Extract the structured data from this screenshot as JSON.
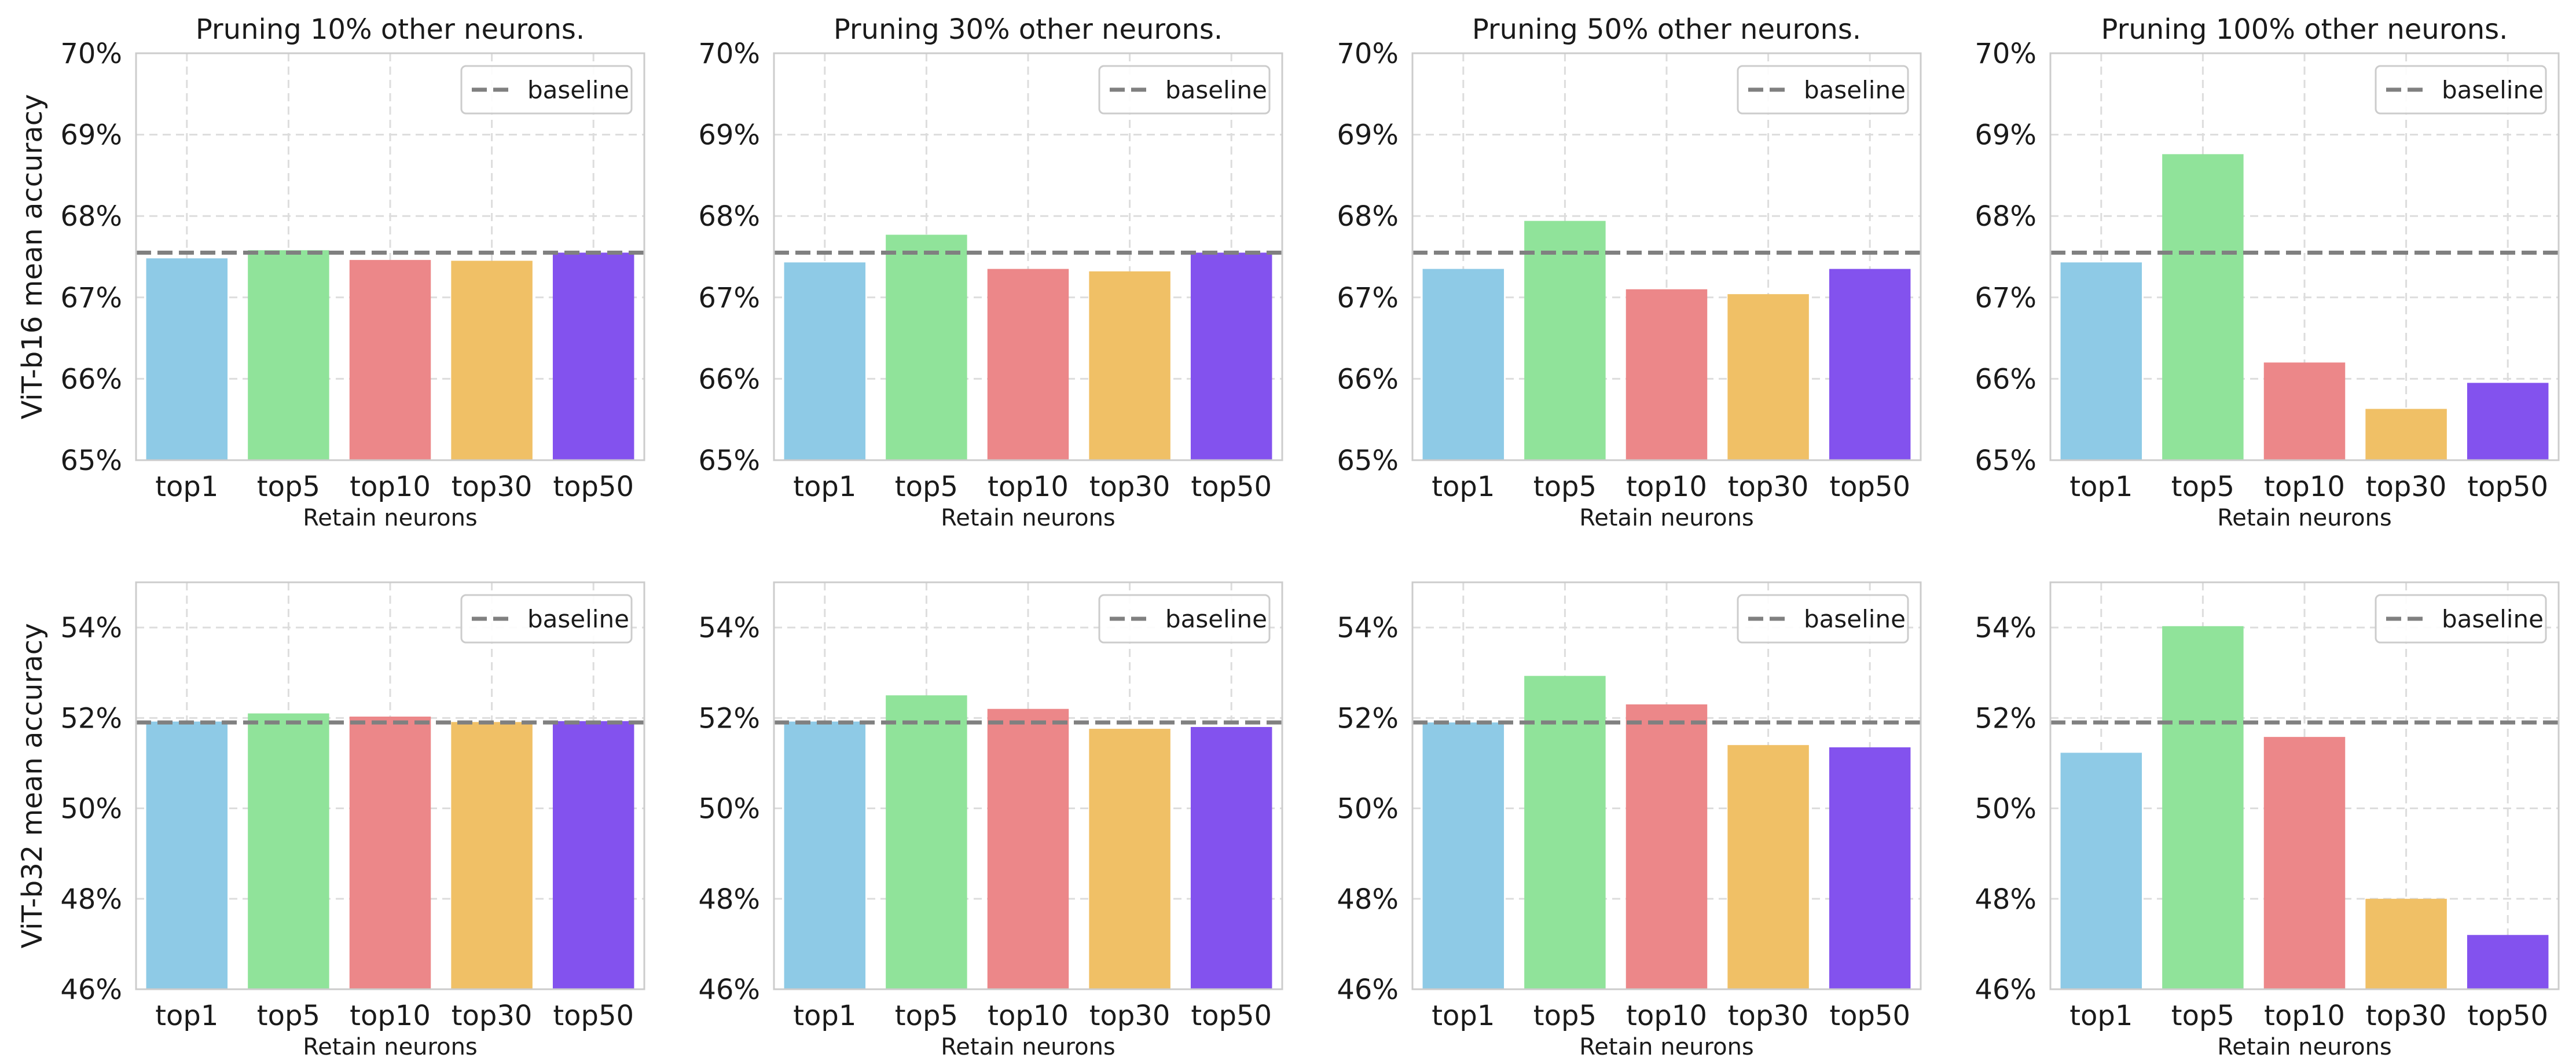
{
  "colors": {
    "bars": [
      "#8ecae6",
      "#90e39a",
      "#ec8789",
      "#f0c066",
      "#8352ee"
    ],
    "baseline": "#808080",
    "grid": "#dddddd",
    "frame": "#cccccc",
    "text": "#1a1a1a"
  },
  "chart_data": [
    {
      "type": "bar",
      "title": "Pruning 10% other neurons.",
      "xlabel": "Retain neurons",
      "ylabel": "ViT-b16 mean accuracy",
      "categories": [
        "top1",
        "top5",
        "top10",
        "top30",
        "top50"
      ],
      "values": [
        67.48,
        67.58,
        67.46,
        67.45,
        67.55
      ],
      "baseline": 67.55,
      "baseline_label": "baseline",
      "ylim": [
        65,
        70
      ],
      "yticks": [
        65,
        66,
        67,
        68,
        69,
        70
      ],
      "ytick_labels": [
        "65%",
        "66%",
        "67%",
        "68%",
        "69%",
        "70%"
      ],
      "grid": true,
      "legend": "top-right"
    },
    {
      "type": "bar",
      "title": "Pruning 30% other neurons.",
      "xlabel": "Retain neurons",
      "ylabel": "",
      "categories": [
        "top1",
        "top5",
        "top10",
        "top30",
        "top50"
      ],
      "values": [
        67.43,
        67.77,
        67.35,
        67.32,
        67.55
      ],
      "baseline": 67.55,
      "baseline_label": "baseline",
      "ylim": [
        65,
        70
      ],
      "yticks": [
        65,
        66,
        67,
        68,
        69,
        70
      ],
      "ytick_labels": [
        "65%",
        "66%",
        "67%",
        "68%",
        "69%",
        "70%"
      ],
      "grid": true,
      "legend": "top-right"
    },
    {
      "type": "bar",
      "title": "Pruning 50% other neurons.",
      "xlabel": "Retain neurons",
      "ylabel": "",
      "categories": [
        "top1",
        "top5",
        "top10",
        "top30",
        "top50"
      ],
      "values": [
        67.35,
        67.94,
        67.1,
        67.04,
        67.35
      ],
      "baseline": 67.55,
      "baseline_label": "baseline",
      "ylim": [
        65,
        70
      ],
      "yticks": [
        65,
        66,
        67,
        68,
        69,
        70
      ],
      "ytick_labels": [
        "65%",
        "66%",
        "67%",
        "68%",
        "69%",
        "70%"
      ],
      "grid": true,
      "legend": "top-right"
    },
    {
      "type": "bar",
      "title": "Pruning 100% other neurons.",
      "xlabel": "Retain neurons",
      "ylabel": "",
      "categories": [
        "top1",
        "top5",
        "top10",
        "top30",
        "top50"
      ],
      "values": [
        67.43,
        68.76,
        66.2,
        65.63,
        65.95
      ],
      "baseline": 67.55,
      "baseline_label": "baseline",
      "ylim": [
        65,
        70
      ],
      "yticks": [
        65,
        66,
        67,
        68,
        69,
        70
      ],
      "ytick_labels": [
        "65%",
        "66%",
        "67%",
        "68%",
        "69%",
        "70%"
      ],
      "grid": true,
      "legend": "top-right"
    },
    {
      "type": "bar",
      "title": "",
      "xlabel": "Retain neurons",
      "ylabel": "ViT-b32 mean accuracy",
      "categories": [
        "top1",
        "top5",
        "top10",
        "top30",
        "top50"
      ],
      "values": [
        51.92,
        52.1,
        52.03,
        51.91,
        51.93
      ],
      "baseline": 51.9,
      "baseline_label": "baseline",
      "ylim": [
        46,
        55
      ],
      "yticks": [
        46,
        48,
        50,
        52,
        54
      ],
      "ytick_labels": [
        "46%",
        "48%",
        "50%",
        "52%",
        "54%"
      ],
      "grid": true,
      "legend": "top-right"
    },
    {
      "type": "bar",
      "title": "",
      "xlabel": "Retain neurons",
      "ylabel": "",
      "categories": [
        "top1",
        "top5",
        "top10",
        "top30",
        "top50"
      ],
      "values": [
        51.92,
        52.5,
        52.2,
        51.76,
        51.8
      ],
      "baseline": 51.9,
      "baseline_label": "baseline",
      "ylim": [
        46,
        55
      ],
      "yticks": [
        46,
        48,
        50,
        52,
        54
      ],
      "ytick_labels": [
        "46%",
        "48%",
        "50%",
        "52%",
        "54%"
      ],
      "grid": true,
      "legend": "top-right"
    },
    {
      "type": "bar",
      "title": "",
      "xlabel": "Retain neurons",
      "ylabel": "",
      "categories": [
        "top1",
        "top5",
        "top10",
        "top30",
        "top50"
      ],
      "values": [
        51.9,
        52.93,
        52.3,
        51.4,
        51.35
      ],
      "baseline": 51.9,
      "baseline_label": "baseline",
      "ylim": [
        46,
        55
      ],
      "yticks": [
        46,
        48,
        50,
        52,
        54
      ],
      "ytick_labels": [
        "46%",
        "48%",
        "50%",
        "52%",
        "54%"
      ],
      "grid": true,
      "legend": "top-right"
    },
    {
      "type": "bar",
      "title": "",
      "xlabel": "Retain neurons",
      "ylabel": "",
      "categories": [
        "top1",
        "top5",
        "top10",
        "top30",
        "top50"
      ],
      "values": [
        51.23,
        54.03,
        51.58,
        48.0,
        47.2
      ],
      "baseline": 51.9,
      "baseline_label": "baseline",
      "ylim": [
        46,
        55
      ],
      "yticks": [
        46,
        48,
        50,
        52,
        54
      ],
      "ytick_labels": [
        "46%",
        "48%",
        "50%",
        "52%",
        "54%"
      ],
      "grid": true,
      "legend": "top-right"
    }
  ]
}
